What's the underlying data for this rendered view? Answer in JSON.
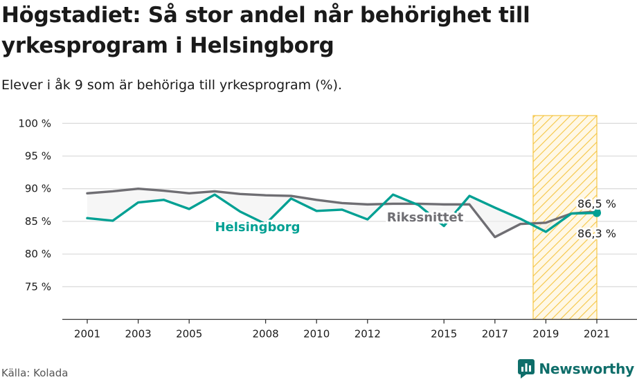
{
  "title": "Högstadiet: Så stor andel når behörighet till yrkesprogram i Helsingborg",
  "subtitle": "Elever i åk 9 som är behöriga till yrkesprogram (%).",
  "source": "Källa: Kolada",
  "brand": "Newsworthy",
  "colors": {
    "helsingborg": "#00a093",
    "riksnittet": "#6f6e73",
    "highlight": "#f5c542",
    "grid": "#dcdcdc",
    "fill": "#eeeeee",
    "brand": "#0f6e6a"
  },
  "chart_data": {
    "type": "line",
    "x": [
      2001,
      2002,
      2003,
      2004,
      2005,
      2006,
      2007,
      2008,
      2009,
      2010,
      2011,
      2012,
      2013,
      2014,
      2015,
      2016,
      2017,
      2018,
      2019,
      2020,
      2021
    ],
    "x_tick_labels": [
      "2001",
      "2003",
      "2005",
      "2008",
      "2010",
      "2012",
      "2015",
      "2017",
      "2019",
      "2021"
    ],
    "y_tick_labels": [
      "75 %",
      "80 %",
      "85 %",
      "90 %",
      "95 %",
      "100 %"
    ],
    "y_ticks": [
      75,
      80,
      85,
      90,
      95,
      100
    ],
    "ylim": [
      70,
      103
    ],
    "series": [
      {
        "name": "Helsingborg",
        "values": [
          85.5,
          85.1,
          87.9,
          88.3,
          86.9,
          89.1,
          86.5,
          84.6,
          88.5,
          86.6,
          86.8,
          85.3,
          89.1,
          87.5,
          84.3,
          88.9,
          87.1,
          85.4,
          83.4,
          86.2,
          86.3
        ]
      },
      {
        "name": "Rikssnittet",
        "values": [
          89.3,
          89.6,
          90.0,
          89.7,
          89.3,
          89.6,
          89.2,
          89.0,
          88.9,
          88.3,
          87.8,
          87.6,
          87.7,
          87.7,
          87.6,
          87.6,
          82.6,
          84.6,
          84.8,
          86.2,
          86.5
        ]
      }
    ],
    "end_labels": {
      "rikssnittet": "86,5 %",
      "helsingborg": "86,3 %"
    },
    "highlight_range": [
      2018.5,
      2021
    ],
    "grid": true,
    "legend": "inline"
  }
}
